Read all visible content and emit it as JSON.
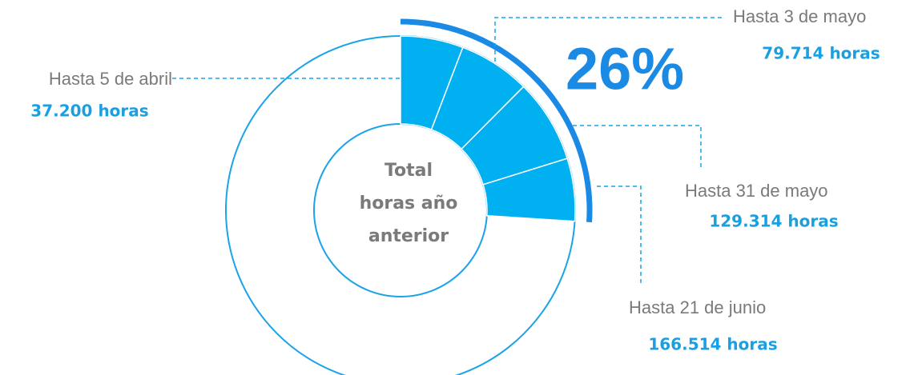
{
  "chart_data": {
    "type": "donut",
    "categories": [
      "Hasta 5 de abril",
      "Hasta 3 de mayo",
      "Hasta 31 de mayo",
      "Hasta 21 de junio"
    ],
    "values": [
      37200,
      79714,
      129314,
      166514
    ],
    "value_labels": [
      "37.200 horas",
      "79.714 horas",
      "129.314 horas",
      "166.514 horas"
    ],
    "percent": 26,
    "percent_label": "26%",
    "center_label": [
      "Total",
      "horas año",
      "anterior"
    ],
    "color": "#00b0f0",
    "ring_color": "#1aa3e8",
    "arc_color": "#1a8ae5"
  }
}
